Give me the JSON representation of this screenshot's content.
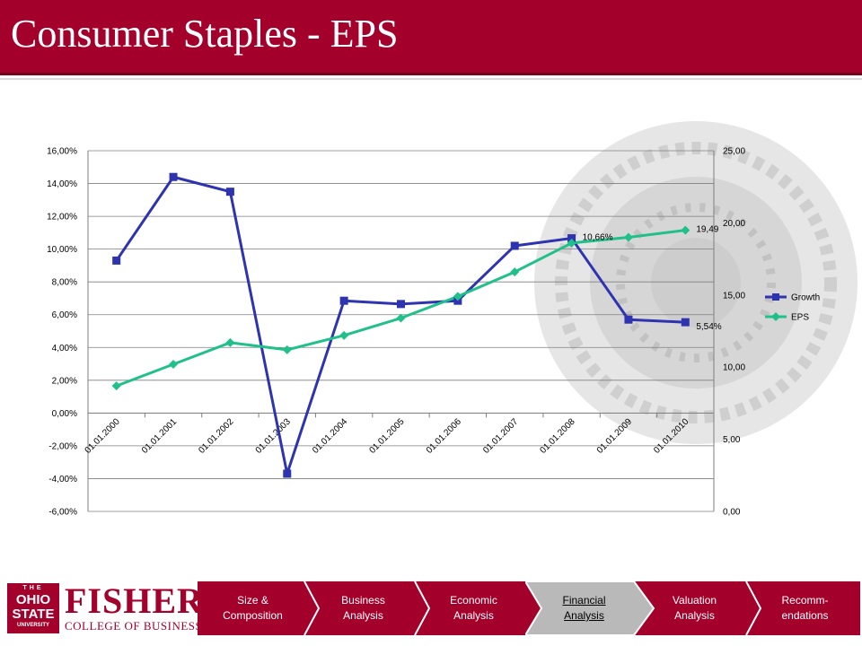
{
  "header": {
    "title": "Consumer Staples - EPS"
  },
  "chart_data": {
    "type": "line",
    "title": "",
    "categories": [
      "01.01.2000",
      "01.01.2001",
      "01.01.2002",
      "01.01.2003",
      "01.01.2004",
      "01.01.2005",
      "01.01.2006",
      "01.01.2007",
      "01.01.2008",
      "01.01.2009",
      "01.01.2010"
    ],
    "left_axis": {
      "ticks": [
        "-6,00%",
        "-4,00%",
        "-2,00%",
        "0,00%",
        "2,00%",
        "4,00%",
        "6,00%",
        "8,00%",
        "10,00%",
        "12,00%",
        "14,00%",
        "16,00%"
      ],
      "min": -6,
      "max": 16,
      "step": 2
    },
    "right_axis": {
      "ticks": [
        "0,00",
        "5,00",
        "10,00",
        "15,00",
        "20,00",
        "25,00"
      ],
      "min": 0,
      "max": 25,
      "step": 5
    },
    "gridlines": true,
    "legend_position": "right",
    "series": [
      {
        "name": "Growth",
        "axis": "left",
        "color": "#2e33b0",
        "marker": "square",
        "values": [
          9.3,
          14.4,
          13.5,
          -3.7,
          6.85,
          6.65,
          6.85,
          10.2,
          10.66,
          5.7,
          5.54
        ]
      },
      {
        "name": "EPS",
        "axis": "right",
        "color": "#1fc08a",
        "marker": "diamond",
        "values": [
          8.7,
          10.2,
          11.7,
          11.2,
          12.2,
          13.4,
          14.9,
          16.6,
          18.6,
          19.0,
          19.49
        ]
      }
    ],
    "annotations": [
      {
        "series": "Growth",
        "index": 8,
        "text": "10,66%"
      },
      {
        "series": "Growth",
        "index": 10,
        "text": "5,54%"
      },
      {
        "series": "EPS",
        "index": 10,
        "text": "19,49"
      }
    ]
  },
  "footer": {
    "logo": {
      "lines": [
        "THE",
        "OHIO",
        "STATE",
        "UNIVERSITY"
      ],
      "name": "FISHER",
      "subtitle": "COLLEGE OF BUSINESS"
    },
    "nav": [
      {
        "label": "Size & Composition",
        "active": false
      },
      {
        "label": "Business Analysis",
        "active": false
      },
      {
        "label": "Economic Analysis",
        "active": false
      },
      {
        "label": "Financial Analysis",
        "active": true
      },
      {
        "label": "Valuation Analysis",
        "active": false
      },
      {
        "label": "Recomm-endations",
        "active": false
      }
    ]
  }
}
